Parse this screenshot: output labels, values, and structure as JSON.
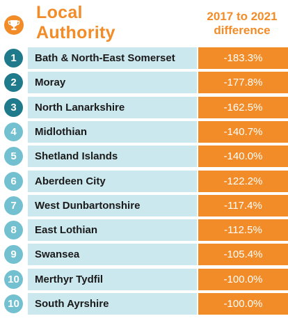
{
  "header": {
    "title_line1": "Local",
    "title_line2": "Authority",
    "diff_line1": "2017 to 2021",
    "diff_line2": "difference",
    "icon": "trophy-icon"
  },
  "colors": {
    "orange": "#f28c28",
    "row_bg": "#cbe8ee",
    "rank_dark": "#1f7a8c",
    "rank_light": "#73c0d0"
  },
  "chart_data": {
    "type": "table",
    "columns": [
      "Local Authority",
      "2017 to 2021 difference"
    ],
    "rows": [
      {
        "rank": "1",
        "name": "Bath & North-East Somerset",
        "value": "-183.3%"
      },
      {
        "rank": "2",
        "name": "Moray",
        "value": "-177.8%"
      },
      {
        "rank": "3",
        "name": "North Lanarkshire",
        "value": "-162.5%"
      },
      {
        "rank": "4",
        "name": "Midlothian",
        "value": "-140.7%"
      },
      {
        "rank": "5",
        "name": "Shetland Islands",
        "value": "-140.0%"
      },
      {
        "rank": "6",
        "name": "Aberdeen City",
        "value": "-122.2%"
      },
      {
        "rank": "7",
        "name": "West Dunbartonshire",
        "value": "-117.4%"
      },
      {
        "rank": "8",
        "name": "East Lothian",
        "value": "-112.5%"
      },
      {
        "rank": "9",
        "name": "Swansea",
        "value": "-105.4%"
      },
      {
        "rank": "10",
        "name": "Merthyr Tydfil",
        "value": "-100.0%"
      },
      {
        "rank": "10",
        "name": "South Ayrshire",
        "value": "-100.0%"
      }
    ]
  }
}
